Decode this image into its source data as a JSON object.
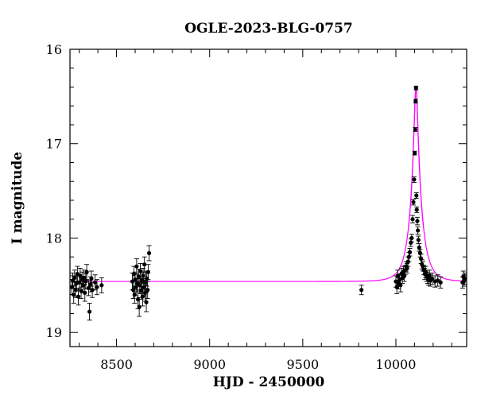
{
  "chart_data": {
    "type": "scatter",
    "title": "OGLE-2023-BLG-0757",
    "xlabel": "HJD - 2450000",
    "ylabel": "I magnitude",
    "xlim": [
      8250,
      10380
    ],
    "ylim": [
      19.15,
      16.0
    ],
    "y_inverted": true,
    "xticks_major": [
      8500,
      9000,
      9500,
      10000
    ],
    "yticks_major": [
      16,
      17,
      18,
      19
    ],
    "x_tick_labels": [
      "8500",
      "9000",
      "9500",
      "10000"
    ],
    "y_tick_labels": [
      "16",
      "17",
      "18",
      "19"
    ],
    "colors": {
      "data": "#000000",
      "model": "#ff00ff"
    },
    "model": {
      "baseline_mag": 18.46,
      "t0": 10108,
      "peak_mag": 16.4
    },
    "series": [
      {
        "points": [
          [
            8260,
            18.52,
            0.08
          ],
          [
            8265,
            18.45,
            0.08
          ],
          [
            8270,
            18.6,
            0.09
          ],
          [
            8275,
            18.42,
            0.08
          ],
          [
            8280,
            18.55,
            0.08
          ],
          [
            8285,
            18.48,
            0.08
          ],
          [
            8290,
            18.38,
            0.08
          ],
          [
            8295,
            18.62,
            0.09
          ],
          [
            8300,
            18.47,
            0.08
          ],
          [
            8305,
            18.4,
            0.08
          ],
          [
            8310,
            18.56,
            0.08
          ],
          [
            8315,
            18.44,
            0.08
          ],
          [
            8320,
            18.5,
            0.08
          ],
          [
            8325,
            18.42,
            0.08
          ],
          [
            8330,
            18.58,
            0.09
          ],
          [
            8335,
            18.46,
            0.08
          ],
          [
            8340,
            18.36,
            0.08
          ],
          [
            8350,
            18.53,
            0.08
          ],
          [
            8355,
            18.78,
            0.09
          ],
          [
            8360,
            18.49,
            0.08
          ],
          [
            8365,
            18.43,
            0.08
          ],
          [
            8370,
            18.55,
            0.08
          ],
          [
            8385,
            18.47,
            0.08
          ],
          [
            8395,
            18.52,
            0.08
          ],
          [
            8420,
            18.5,
            0.08
          ],
          [
            8585,
            18.46,
            0.09
          ],
          [
            8590,
            18.55,
            0.09
          ],
          [
            8593,
            18.38,
            0.08
          ],
          [
            8597,
            18.6,
            0.09
          ],
          [
            8600,
            18.44,
            0.08
          ],
          [
            8605,
            18.52,
            0.09
          ],
          [
            8608,
            18.3,
            0.08
          ],
          [
            8612,
            18.48,
            0.09
          ],
          [
            8615,
            18.65,
            0.1
          ],
          [
            8618,
            18.41,
            0.08
          ],
          [
            8622,
            18.73,
            0.1
          ],
          [
            8625,
            18.5,
            0.09
          ],
          [
            8628,
            18.35,
            0.08
          ],
          [
            8632,
            18.56,
            0.09
          ],
          [
            8635,
            18.45,
            0.09
          ],
          [
            8640,
            18.62,
            0.1
          ],
          [
            8643,
            18.4,
            0.08
          ],
          [
            8647,
            18.52,
            0.09
          ],
          [
            8650,
            18.28,
            0.08
          ],
          [
            8653,
            18.58,
            0.09
          ],
          [
            8657,
            18.46,
            0.09
          ],
          [
            8660,
            18.68,
            0.1
          ],
          [
            8663,
            18.43,
            0.08
          ],
          [
            8667,
            18.55,
            0.09
          ],
          [
            8670,
            18.36,
            0.08
          ],
          [
            8675,
            18.16,
            0.08
          ],
          [
            9815,
            18.55,
            0.05
          ],
          [
            10000,
            18.46,
            0.06
          ],
          [
            10005,
            18.52,
            0.07
          ],
          [
            10010,
            18.4,
            0.06
          ],
          [
            10015,
            18.48,
            0.06
          ],
          [
            10020,
            18.44,
            0.06
          ],
          [
            10025,
            18.5,
            0.07
          ],
          [
            10030,
            18.38,
            0.06
          ],
          [
            10035,
            18.42,
            0.06
          ],
          [
            10040,
            18.36,
            0.06
          ],
          [
            10045,
            18.4,
            0.06
          ],
          [
            10050,
            18.34,
            0.05
          ],
          [
            10055,
            18.3,
            0.05
          ],
          [
            10060,
            18.32,
            0.05
          ],
          [
            10065,
            18.25,
            0.05
          ],
          [
            10070,
            18.2,
            0.05
          ],
          [
            10075,
            18.15,
            0.04
          ],
          [
            10080,
            18.05,
            0.04
          ],
          [
            10085,
            18.0,
            0.04
          ],
          [
            10090,
            17.8,
            0.04
          ],
          [
            10094,
            17.62,
            0.03
          ],
          [
            10098,
            17.38,
            0.03
          ],
          [
            10101,
            17.1,
            0.02
          ],
          [
            10104,
            16.85,
            0.02
          ],
          [
            10106,
            16.55,
            0.02
          ],
          [
            10108,
            16.41,
            0.02
          ],
          [
            10110,
            17.55,
            0.03
          ],
          [
            10112,
            17.7,
            0.03
          ],
          [
            10115,
            17.82,
            0.04
          ],
          [
            10118,
            17.92,
            0.04
          ],
          [
            10121,
            18.02,
            0.04
          ],
          [
            10125,
            18.1,
            0.04
          ],
          [
            10130,
            18.16,
            0.04
          ],
          [
            10135,
            18.22,
            0.05
          ],
          [
            10140,
            18.28,
            0.05
          ],
          [
            10145,
            18.3,
            0.05
          ],
          [
            10150,
            18.34,
            0.05
          ],
          [
            10155,
            18.38,
            0.06
          ],
          [
            10160,
            18.36,
            0.06
          ],
          [
            10165,
            18.4,
            0.06
          ],
          [
            10170,
            18.42,
            0.06
          ],
          [
            10175,
            18.44,
            0.06
          ],
          [
            10180,
            18.4,
            0.06
          ],
          [
            10185,
            18.45,
            0.06
          ],
          [
            10195,
            18.43,
            0.06
          ],
          [
            10210,
            18.46,
            0.06
          ],
          [
            10225,
            18.45,
            0.06
          ],
          [
            10240,
            18.47,
            0.06
          ],
          [
            10358,
            18.47,
            0.06
          ],
          [
            10362,
            18.41,
            0.06
          ],
          [
            10366,
            18.45,
            0.06
          ],
          [
            10370,
            18.43,
            0.06
          ]
        ]
      }
    ]
  }
}
